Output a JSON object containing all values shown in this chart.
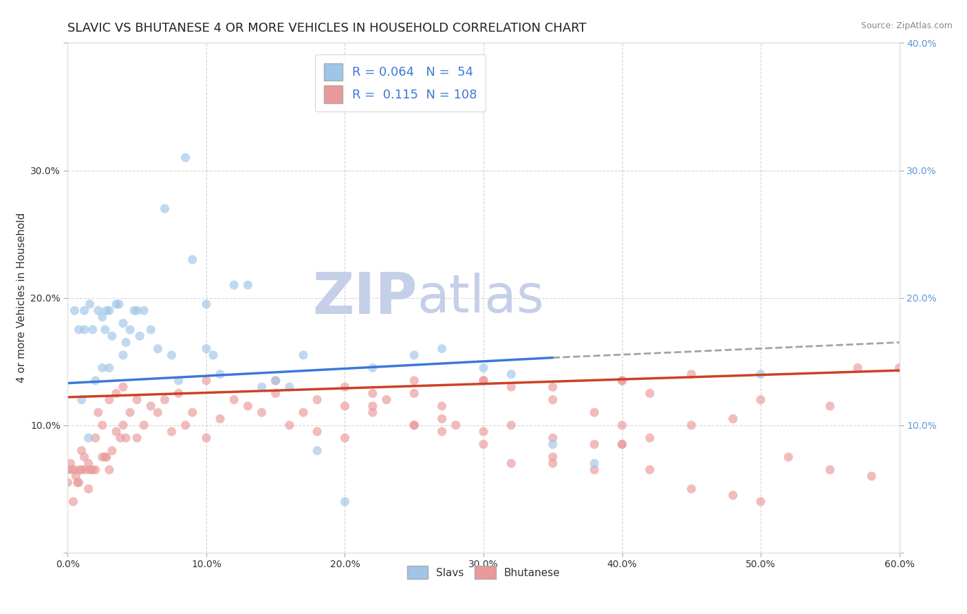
{
  "title": "SLAVIC VS BHUTANESE 4 OR MORE VEHICLES IN HOUSEHOLD CORRELATION CHART",
  "source": "Source: ZipAtlas.com",
  "ylabel": "4 or more Vehicles in Household",
  "xlim": [
    0.0,
    0.6
  ],
  "ylim": [
    0.0,
    0.4
  ],
  "xticks": [
    0.0,
    0.1,
    0.2,
    0.3,
    0.4,
    0.5,
    0.6
  ],
  "yticks": [
    0.0,
    0.1,
    0.2,
    0.3,
    0.4
  ],
  "xtick_labels": [
    "0.0%",
    "10.0%",
    "20.0%",
    "30.0%",
    "40.0%",
    "50.0%",
    "60.0%"
  ],
  "left_ytick_labels": [
    "",
    "10.0%",
    "20.0%",
    "30.0%",
    ""
  ],
  "right_ytick_labels": [
    "",
    "10.0%",
    "20.0%",
    "30.0%",
    "40.0%"
  ],
  "slavs_color": "#9fc5e8",
  "bhutanese_color": "#ea9999",
  "slavs_line_color": "#3c78d8",
  "bhutanese_line_color": "#cc4125",
  "dashed_line_color": "#999999",
  "watermark_zip_color": "#c5cfe8",
  "watermark_atlas_color": "#c5cfe8",
  "slavs_r": 0.064,
  "slavs_n": 54,
  "bhutanese_r": 0.115,
  "bhutanese_n": 108,
  "background_color": "#ffffff",
  "grid_color": "#cccccc",
  "title_fontsize": 13,
  "axis_label_fontsize": 11,
  "tick_fontsize": 10,
  "scatter_size": 90,
  "slavs_x": [
    0.005,
    0.008,
    0.01,
    0.012,
    0.012,
    0.015,
    0.016,
    0.018,
    0.02,
    0.022,
    0.025,
    0.025,
    0.027,
    0.028,
    0.03,
    0.03,
    0.032,
    0.035,
    0.037,
    0.04,
    0.04,
    0.042,
    0.045,
    0.048,
    0.05,
    0.052,
    0.055,
    0.06,
    0.065,
    0.07,
    0.075,
    0.08,
    0.085,
    0.09,
    0.1,
    0.1,
    0.105,
    0.11,
    0.12,
    0.13,
    0.14,
    0.15,
    0.16,
    0.17,
    0.18,
    0.2,
    0.22,
    0.25,
    0.27,
    0.3,
    0.32,
    0.35,
    0.38,
    0.5
  ],
  "slavs_y": [
    0.19,
    0.175,
    0.12,
    0.19,
    0.175,
    0.09,
    0.195,
    0.175,
    0.135,
    0.19,
    0.185,
    0.145,
    0.175,
    0.19,
    0.19,
    0.145,
    0.17,
    0.195,
    0.195,
    0.18,
    0.155,
    0.165,
    0.175,
    0.19,
    0.19,
    0.17,
    0.19,
    0.175,
    0.16,
    0.27,
    0.155,
    0.135,
    0.31,
    0.23,
    0.16,
    0.195,
    0.155,
    0.14,
    0.21,
    0.21,
    0.13,
    0.135,
    0.13,
    0.155,
    0.08,
    0.04,
    0.145,
    0.155,
    0.16,
    0.145,
    0.14,
    0.085,
    0.07,
    0.14
  ],
  "bhutanese_x": [
    0.0,
    0.0,
    0.002,
    0.003,
    0.004,
    0.005,
    0.006,
    0.007,
    0.008,
    0.009,
    0.01,
    0.01,
    0.012,
    0.013,
    0.015,
    0.015,
    0.016,
    0.018,
    0.02,
    0.02,
    0.022,
    0.025,
    0.025,
    0.027,
    0.028,
    0.03,
    0.03,
    0.032,
    0.035,
    0.035,
    0.038,
    0.04,
    0.04,
    0.042,
    0.045,
    0.05,
    0.05,
    0.055,
    0.06,
    0.065,
    0.07,
    0.075,
    0.08,
    0.085,
    0.09,
    0.1,
    0.1,
    0.11,
    0.12,
    0.13,
    0.14,
    0.15,
    0.16,
    0.17,
    0.18,
    0.2,
    0.22,
    0.25,
    0.27,
    0.3,
    0.32,
    0.35,
    0.38,
    0.4,
    0.42,
    0.45,
    0.48,
    0.5,
    0.52,
    0.55,
    0.57,
    0.3,
    0.35,
    0.4,
    0.42,
    0.45,
    0.15,
    0.2,
    0.22,
    0.25,
    0.28,
    0.18,
    0.2,
    0.23,
    0.25,
    0.27,
    0.3,
    0.32,
    0.35,
    0.38,
    0.4,
    0.22,
    0.25,
    0.27,
    0.3,
    0.32,
    0.35,
    0.38,
    0.4,
    0.42,
    0.45,
    0.48,
    0.5,
    0.55,
    0.58,
    0.6,
    0.35,
    0.4
  ],
  "bhutanese_y": [
    0.065,
    0.055,
    0.07,
    0.065,
    0.04,
    0.065,
    0.06,
    0.055,
    0.055,
    0.065,
    0.065,
    0.08,
    0.075,
    0.065,
    0.05,
    0.07,
    0.065,
    0.065,
    0.065,
    0.09,
    0.11,
    0.075,
    0.1,
    0.075,
    0.075,
    0.065,
    0.12,
    0.08,
    0.095,
    0.125,
    0.09,
    0.1,
    0.13,
    0.09,
    0.11,
    0.09,
    0.12,
    0.1,
    0.115,
    0.11,
    0.12,
    0.095,
    0.125,
    0.1,
    0.11,
    0.09,
    0.135,
    0.105,
    0.12,
    0.115,
    0.11,
    0.125,
    0.1,
    0.11,
    0.095,
    0.09,
    0.11,
    0.1,
    0.105,
    0.095,
    0.1,
    0.09,
    0.085,
    0.135,
    0.09,
    0.1,
    0.105,
    0.12,
    0.075,
    0.115,
    0.145,
    0.135,
    0.13,
    0.135,
    0.125,
    0.14,
    0.135,
    0.13,
    0.125,
    0.135,
    0.1,
    0.12,
    0.115,
    0.12,
    0.125,
    0.115,
    0.135,
    0.13,
    0.12,
    0.11,
    0.1,
    0.115,
    0.1,
    0.095,
    0.085,
    0.07,
    0.07,
    0.065,
    0.085,
    0.065,
    0.05,
    0.045,
    0.04,
    0.065,
    0.06,
    0.145,
    0.075,
    0.085
  ],
  "slavs_line_x0": 0.0,
  "slavs_line_x_solid_end": 0.35,
  "slavs_line_x1": 0.6,
  "slavs_line_y0": 0.133,
  "slavs_line_y_solid_end": 0.153,
  "slavs_line_y1": 0.165,
  "bhutanese_line_x0": 0.0,
  "bhutanese_line_x1": 0.6,
  "bhutanese_line_y0": 0.122,
  "bhutanese_line_y1": 0.143
}
